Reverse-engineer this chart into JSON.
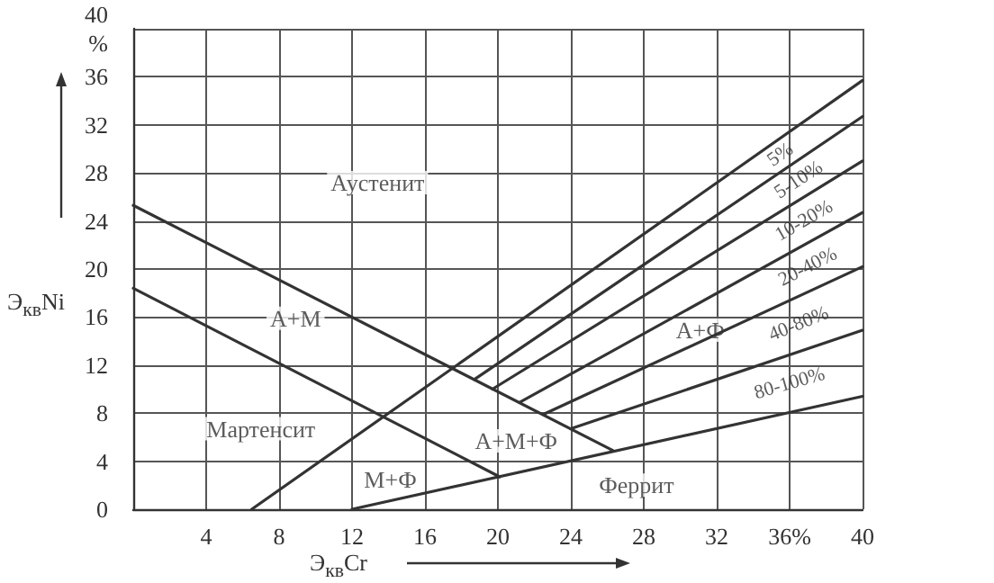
{
  "chart_data": {
    "type": "line",
    "xlabel": "Э$_{кв}$Cr",
    "ylabel": "Э$_{кв}$Ni",
    "xlim": [
      0,
      40
    ],
    "ylim": [
      0,
      40
    ],
    "xticks": [
      {
        "value": 0,
        "label": null
      },
      4,
      8,
      12,
      16,
      20,
      24,
      28,
      32,
      {
        "value": 36,
        "label": "36%"
      },
      40
    ],
    "yticks": [
      0,
      4,
      8,
      12,
      16,
      20,
      24,
      28,
      32,
      36,
      {
        "value": 40,
        "label": "40\n%"
      }
    ],
    "grid": true,
    "marker": "none",
    "line_style": "solid",
    "series": [
      {
        "color": "#333333",
        "x": [
          0,
          26.3
        ],
        "values": [
          25.3,
          4.9
        ]
      },
      {
        "color": "#333333",
        "x": [
          0,
          20.1
        ],
        "values": [
          18.4,
          2.7
        ]
      },
      {
        "color": "#333333",
        "x": [
          12,
          40
        ],
        "values": [
          0,
          9.4
        ]
      },
      {
        "color": "#333333",
        "x": [
          6.5,
          40
        ],
        "values": [
          0,
          35.7
        ]
      },
      {
        "color": "#333333",
        "x": [
          18.7,
          40
        ],
        "values": [
          10.8,
          32.7
        ]
      },
      {
        "color": "#333333",
        "x": [
          19.7,
          40
        ],
        "values": [
          10,
          29
        ]
      },
      {
        "color": "#333333",
        "x": [
          21.2,
          40
        ],
        "values": [
          8.9,
          24.7
        ]
      },
      {
        "color": "#333333",
        "x": [
          22.5,
          40
        ],
        "values": [
          7.9,
          20.2
        ]
      },
      {
        "color": "#333333",
        "x": [
          24,
          40
        ],
        "values": [
          6.7,
          14.9
        ]
      }
    ],
    "annotations": [
      "Аустенит",
      "А+М",
      "Мартенсит",
      "А+М+Ф",
      "М+Ф",
      "Феррит",
      "А+Ф",
      "5%",
      "5-10%",
      "10-20%",
      "20-40%",
      "40-80%",
      "80-100%"
    ]
  }
}
